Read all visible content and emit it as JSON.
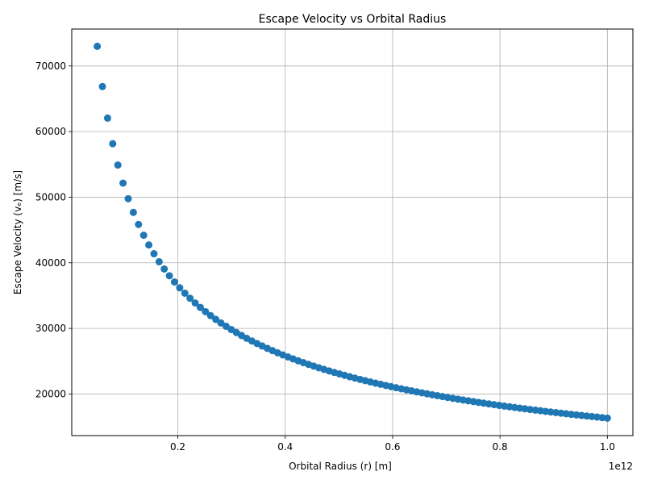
{
  "chart_data": {
    "type": "scatter",
    "title": "Escape Velocity vs Orbital Radius",
    "xlabel": "Orbital Radius (r) [m]",
    "ylabel": "Escape Velocity (vₑ) [m/s]",
    "x_offset_label": "1e12",
    "xlim": [
      0.0025,
      1.0475
    ],
    "ylim": [
      13660,
      75630
    ],
    "x_ticks": [
      0.2,
      0.4,
      0.6,
      0.8,
      1.0
    ],
    "x_tick_labels": [
      "0.2",
      "0.4",
      "0.6",
      "0.8",
      "1.0"
    ],
    "y_ticks": [
      20000,
      30000,
      40000,
      50000,
      60000,
      70000
    ],
    "y_tick_labels": [
      "20000",
      "30000",
      "40000",
      "50000",
      "60000",
      "70000"
    ],
    "grid": true,
    "marker_color": "#1f77b4",
    "series": [
      {
        "x": [
          0.05,
          0.0596,
          0.0692,
          0.0788,
          0.0884,
          0.098,
          0.1076,
          0.1172,
          0.1268,
          0.1364,
          0.146,
          0.1556,
          0.1652,
          0.1747,
          0.1843,
          0.1939,
          0.2035,
          0.2131,
          0.2227,
          0.2323,
          0.2419,
          0.2515,
          0.2611,
          0.2707,
          0.2803,
          0.2899,
          0.2995,
          0.3091,
          0.3187,
          0.3283,
          0.3379,
          0.3475,
          0.3571,
          0.3667,
          0.3763,
          0.3859,
          0.3955,
          0.4051,
          0.4146,
          0.4242,
          0.4338,
          0.4434,
          0.453,
          0.4626,
          0.4722,
          0.4818,
          0.4914,
          0.501,
          0.5106,
          0.5202,
          0.5298,
          0.5394,
          0.549,
          0.5586,
          0.5682,
          0.5778,
          0.5874,
          0.597,
          0.6066,
          0.6162,
          0.6258,
          0.6354,
          0.645,
          0.6545,
          0.6641,
          0.6737,
          0.6833,
          0.6929,
          0.7025,
          0.7121,
          0.7217,
          0.7313,
          0.7409,
          0.7505,
          0.7601,
          0.7697,
          0.7793,
          0.7889,
          0.7985,
          0.8081,
          0.8177,
          0.8273,
          0.8369,
          0.8465,
          0.8561,
          0.8657,
          0.8753,
          0.8849,
          0.8944,
          0.904,
          0.9136,
          0.9232,
          0.9328,
          0.9424,
          0.952,
          0.9616,
          0.9712,
          0.9808,
          0.9904,
          1.0
        ],
        "y": [
          73000,
          66862,
          62054,
          58148,
          54903,
          52145,
          49769,
          47686,
          45844,
          44199,
          42720,
          41380,
          40160,
          39053,
          38023,
          37075,
          36189,
          35366,
          34595,
          33873,
          33196,
          32553,
          31947,
          31374,
          30833,
          30318,
          29828,
          29362,
          28916,
          28491,
          28084,
          27693,
          27319,
          26959,
          26615,
          26279,
          25959,
          25648,
          25352,
          25063,
          24785,
          24516,
          24255,
          24001,
          23756,
          23518,
          23289,
          23064,
          22846,
          22633,
          22428,
          22227,
          22032,
          21842,
          21657,
          21476,
          21300,
          21128,
          20960,
          20796,
          20636,
          20479,
          20326,
          20178,
          20032,
          19889,
          19748,
          19611,
          19476,
          19345,
          19216,
          19089,
          18965,
          18844,
          18724,
          18607,
          18492,
          18379,
          18269,
          18160,
          18053,
          17948,
          17845,
          17743,
          17643,
          17545,
          17449,
          17354,
          17262,
          17170,
          17079,
          16990,
          16902,
          16816,
          16731,
          16647,
          16565,
          16483,
          16403,
          16325
        ]
      }
    ]
  }
}
